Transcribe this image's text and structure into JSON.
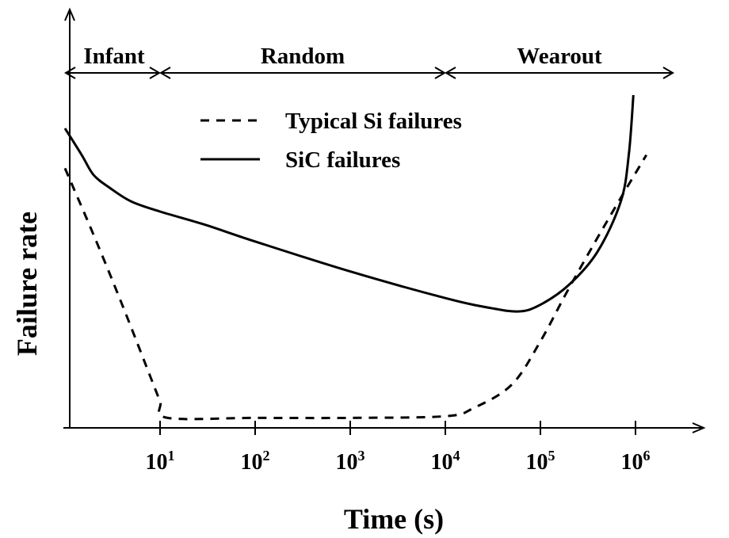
{
  "chart_data": {
    "type": "line",
    "title": "",
    "xlabel": "Time (s)",
    "ylabel": "Failure rate",
    "x_scale": "log",
    "xlim": [
      1,
      1000000
    ],
    "y_ticks_shown": false,
    "grid": false,
    "legend_position": "top-center",
    "x_tick_labels": [
      {
        "base": "10",
        "exp": "1",
        "value": 10
      },
      {
        "base": "10",
        "exp": "2",
        "value": 100
      },
      {
        "base": "10",
        "exp": "3",
        "value": 1000
      },
      {
        "base": "10",
        "exp": "4",
        "value": 10000
      },
      {
        "base": "10",
        "exp": "5",
        "value": 100000
      },
      {
        "base": "10",
        "exp": "6",
        "value": 1000000
      }
    ],
    "phases": [
      {
        "label": "Infant",
        "from": 1,
        "to": 10
      },
      {
        "label": "Random",
        "from": 10,
        "to": 10000
      },
      {
        "label": "Wearout",
        "from": 10000,
        "to": 1000000
      }
    ],
    "series": [
      {
        "name": "Typical Si failures",
        "style": "dashed",
        "color": "#000000",
        "x": [
          1,
          2,
          4,
          8,
          10,
          12,
          100,
          1000,
          10000,
          20000,
          50000,
          100000,
          200000,
          500000,
          1300000
        ],
        "y": [
          0.78,
          0.58,
          0.37,
          0.15,
          0.08,
          0.03,
          0.03,
          0.03,
          0.035,
          0.06,
          0.13,
          0.26,
          0.42,
          0.62,
          0.82
        ]
      },
      {
        "name": "SiC failures",
        "style": "solid",
        "color": "#000000",
        "x": [
          1,
          1.5,
          2,
          3,
          5,
          10,
          30,
          100,
          1000,
          10000,
          30000,
          60000,
          100000,
          200000,
          400000,
          700000,
          850000,
          950000
        ],
        "y": [
          0.9,
          0.82,
          0.76,
          0.72,
          0.68,
          0.65,
          0.61,
          0.56,
          0.47,
          0.39,
          0.36,
          0.35,
          0.37,
          0.43,
          0.53,
          0.68,
          0.82,
          1.0
        ]
      }
    ]
  }
}
